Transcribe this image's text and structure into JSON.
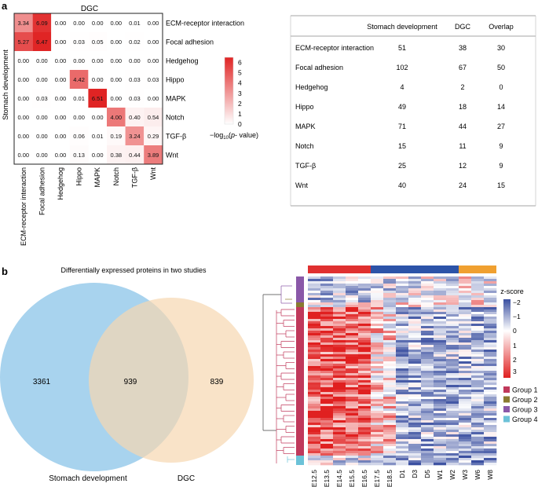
{
  "panel_a": {
    "label": "a",
    "heatmap": {
      "title": "DGC",
      "ylabel": "Stomach development",
      "rows": [
        "ECM-receptor interaction",
        "Focal adhesion",
        "Hedgehog",
        "Hippo",
        "MAPK",
        "Notch",
        "TGF-β",
        "Wnt"
      ],
      "cols": [
        "ECM-receptor interaction",
        "Focal adhesion",
        "Hedgehog",
        "Hippo",
        "MAPK",
        "Notch",
        "TGF-β",
        "Wnt"
      ],
      "values": [
        [
          "3.34",
          "6.09",
          "0.00",
          "0.00",
          "0.00",
          "0.00",
          "0.01",
          "0.00"
        ],
        [
          "5.27",
          "6.47",
          "0.00",
          "0.03",
          "0.05",
          "0.00",
          "0.02",
          "0.00"
        ],
        [
          "0.00",
          "0.00",
          "0.00",
          "0.00",
          "0.00",
          "0.00",
          "0.00",
          "0.00"
        ],
        [
          "0.00",
          "0.00",
          "0.00",
          "4.42",
          "0.00",
          "0.00",
          "0.03",
          "0.03"
        ],
        [
          "0.00",
          "0.03",
          "0.00",
          "0.01",
          "6.51",
          "0.00",
          "0.03",
          "0.00"
        ],
        [
          "0.00",
          "0.00",
          "0.00",
          "0.00",
          "0.00",
          "4.00",
          "0.40",
          "0.54"
        ],
        [
          "0.00",
          "0.00",
          "0.00",
          "0.06",
          "0.01",
          "0.19",
          "3.24",
          "0.29"
        ],
        [
          "0.00",
          "0.00",
          "0.00",
          "0.13",
          "0.00",
          "0.38",
          "0.44",
          "3.89"
        ]
      ],
      "colorbar": {
        "ticks": [
          "6",
          "5",
          "4",
          "3",
          "2",
          "1",
          "0"
        ],
        "max": 6.5,
        "label_prefix": "−log",
        "label_sub": "10",
        "label_open": "(",
        "label_italic": "p",
        "label_close": "- value)"
      }
    },
    "table": {
      "headers": [
        "",
        "Stomach development",
        "DGC",
        "Overlap"
      ],
      "rows": [
        [
          "ECM-receptor interaction",
          "51",
          "38",
          "30"
        ],
        [
          "Focal adhesion",
          "102",
          "67",
          "50"
        ],
        [
          "Hedgehog",
          "4",
          "2",
          "0"
        ],
        [
          "Hippo",
          "49",
          "18",
          "14"
        ],
        [
          "MAPK",
          "71",
          "44",
          "27"
        ],
        [
          "Notch",
          "15",
          "11",
          "9"
        ],
        [
          "TGF-β",
          "25",
          "12",
          "9"
        ],
        [
          "Wnt",
          "40",
          "24",
          "15"
        ]
      ]
    }
  },
  "panel_b": {
    "label": "b",
    "venn": {
      "title": "Differentially expressed proteins in two studies",
      "left_only": "3361",
      "overlap": "939",
      "right_only": "839",
      "left_label": "Stomach development",
      "right_label": "DGC",
      "left_color": "#a8d3ee",
      "right_color": "#f7d7b0"
    },
    "expression_heatmap": {
      "columns": [
        "E12.5",
        "E13.5",
        "E14.5",
        "E15.5",
        "E16.5",
        "E17.5",
        "E18.5",
        "D1",
        "D3",
        "D5",
        "W1",
        "W2",
        "W3",
        "W6",
        "W8"
      ],
      "column_group_colors": [
        "#e03030",
        "#2c53a8",
        "#f0a030"
      ],
      "column_group_sizes": [
        5,
        7,
        3
      ],
      "colorbar": {
        "title": "z-score",
        "ticks": [
          "−2",
          "−1",
          "0",
          "1",
          "2",
          "3"
        ],
        "colors": {
          "high": "#e02020",
          "mid": "#ffffff",
          "low": "#3a4fa0"
        }
      },
      "legend": [
        {
          "label": "Group 1",
          "color": "#c0395b"
        },
        {
          "label": "Group 2",
          "color": "#8a7a30"
        },
        {
          "label": "Group 3",
          "color": "#8a58a8"
        },
        {
          "label": "Group 4",
          "color": "#6cc2d8"
        }
      ]
    }
  }
}
